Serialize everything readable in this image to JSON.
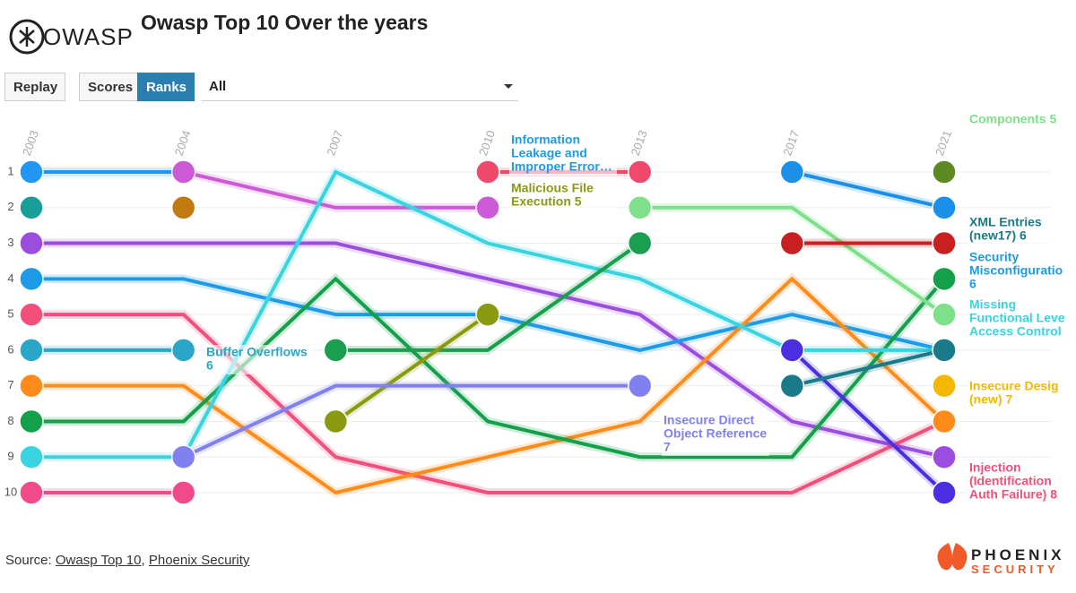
{
  "header": {
    "logo": "OWASP",
    "title": "Owasp Top 10 Over the years"
  },
  "controls": {
    "replay": "Replay",
    "scores": "Scores",
    "ranks": "Ranks",
    "filter": "All"
  },
  "chart_data": {
    "type": "bump",
    "categories": [
      "2003",
      "2004",
      "2007",
      "2010",
      "2013",
      "2017",
      "2021"
    ],
    "ylim": [
      10,
      1
    ],
    "yticks": [
      1,
      2,
      3,
      4,
      5,
      6,
      7,
      8,
      9,
      10
    ],
    "series": [
      {
        "color": "#2196f3",
        "values": [
          1,
          1,
          null,
          null,
          null,
          null,
          null
        ]
      },
      {
        "color": "#cc5ad6",
        "values": [
          null,
          1,
          2,
          2,
          null,
          null,
          null
        ]
      },
      {
        "color": "#1a9e9a",
        "values": [
          2,
          null,
          null,
          null,
          null,
          null,
          null
        ]
      },
      {
        "color": "#c07a10",
        "values": [
          null,
          2,
          null,
          null,
          null,
          null,
          null
        ]
      },
      {
        "color": "#9b4de0",
        "values": [
          3,
          3,
          3,
          4,
          5,
          8,
          9
        ]
      },
      {
        "color": "#1e9be8",
        "values": [
          4,
          4,
          5,
          5,
          6,
          5,
          6
        ]
      },
      {
        "color": "#f2507a",
        "values": [
          5,
          5,
          9,
          10,
          10,
          10,
          8
        ]
      },
      {
        "color": "#2aa6c6",
        "values": [
          6,
          6,
          null,
          null,
          null,
          null,
          null
        ]
      },
      {
        "color": "#ff8c1a",
        "values": [
          7,
          7,
          10,
          9,
          8,
          4,
          8
        ]
      },
      {
        "color": "#14a04a",
        "values": [
          8,
          8,
          4,
          8,
          9,
          9,
          4
        ]
      },
      {
        "color": "#3ad4e0",
        "values": [
          9,
          9,
          1,
          3,
          4,
          6,
          6
        ]
      },
      {
        "color": "#f04a8a",
        "values": [
          10,
          10,
          null,
          null,
          null,
          null,
          null
        ]
      },
      {
        "color": "#1a9e50",
        "values": [
          null,
          null,
          6,
          6,
          3,
          null,
          null
        ]
      },
      {
        "color": "#8a9a10",
        "values": [
          null,
          null,
          8,
          5,
          null,
          null,
          null
        ]
      },
      {
        "color": "#8080f0",
        "values": [
          null,
          9,
          7,
          7,
          7,
          null,
          null
        ]
      },
      {
        "color": "#f04a6a",
        "values": [
          null,
          null,
          null,
          1,
          1,
          null,
          null
        ]
      },
      {
        "color": "#7ee08a",
        "values": [
          null,
          null,
          null,
          null,
          2,
          2,
          5
        ]
      },
      {
        "color": "#c82020",
        "values": [
          null,
          null,
          null,
          null,
          null,
          3,
          3
        ]
      },
      {
        "color": "#1a90e8",
        "values": [
          null,
          null,
          null,
          null,
          null,
          1,
          2
        ]
      },
      {
        "color": "#4b2ee0",
        "values": [
          null,
          null,
          null,
          null,
          null,
          6,
          10
        ]
      },
      {
        "color": "#1a7a8a",
        "values": [
          null,
          null,
          null,
          null,
          null,
          7,
          6
        ]
      },
      {
        "color": "#5a8a20",
        "values": [
          null,
          null,
          null,
          null,
          null,
          null,
          1
        ]
      },
      {
        "color": "#f5b800",
        "values": [
          null,
          null,
          null,
          null,
          null,
          null,
          7
        ]
      }
    ],
    "annotations": [
      {
        "color": "#7ee08a",
        "lines": [
          "Components 5"
        ]
      },
      {
        "color": "#1e9be8",
        "lines": [
          "Information",
          "Leakage and",
          "Improper Error…"
        ]
      },
      {
        "color": "#8a9a10",
        "lines": [
          "Malicious File",
          "Execution 5"
        ]
      },
      {
        "color": "#2aa6c6",
        "lines": [
          "Buffer Overflows",
          "6"
        ]
      },
      {
        "color": "#8080f0",
        "lines": [
          "Insecure Direct",
          "Object Reference",
          "7"
        ]
      },
      {
        "color": "#1a7a8a",
        "lines": [
          "XML Entries",
          "(new17) 6"
        ]
      },
      {
        "color": "#1e9be8",
        "lines": [
          "Security",
          "Misconfiguratio",
          "6"
        ]
      },
      {
        "color": "#3ad4e0",
        "lines": [
          "Missing",
          "Functional Leve",
          "Access Control"
        ]
      },
      {
        "color": "#f5b800",
        "lines": [
          "Insecure Desig",
          "(new) 7"
        ]
      },
      {
        "color": "#f2507a",
        "lines": [
          "Injection",
          "(Identification",
          "Auth Failure) 8"
        ]
      }
    ]
  },
  "footer": {
    "source": "Source:",
    "links": [
      "Owasp Top 10",
      "Phoenix Security"
    ],
    "brand": [
      "PHOENIX",
      "SECURITY"
    ]
  }
}
